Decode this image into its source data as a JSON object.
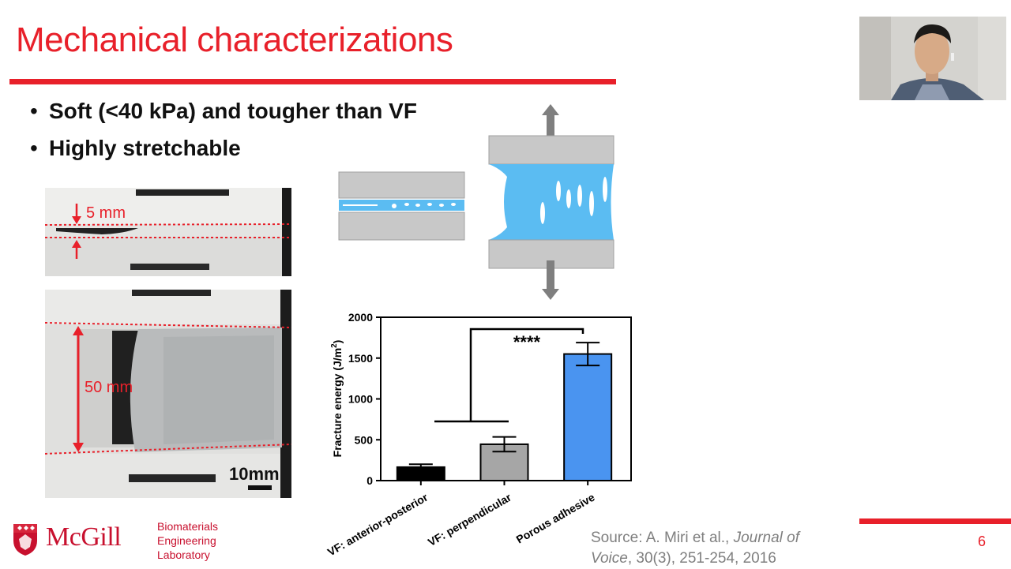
{
  "slide": {
    "title": "Mechanical characterizations",
    "bullets": [
      "Soft (<40 kPa) and tougher than VF",
      "Highly stretchable"
    ],
    "bullet_symbol": "•",
    "page_number": "6",
    "accent_color": "#e8202a"
  },
  "photos": {
    "top_label": "5 mm",
    "bottom_label": "50 mm",
    "scale_bar_label": "10mm"
  },
  "source": {
    "prefix": "Source: A. Miri et al., ",
    "journal_line1": "Journal of",
    "journal_line2": "Voice",
    "suffix": ", 30(3), 251-254, 2016"
  },
  "logo": {
    "wordmark": "McGill",
    "lab_lines": [
      "Biomaterials",
      "Engineering",
      "Laboratory"
    ]
  },
  "chart_data": {
    "type": "bar",
    "categories": [
      "VF: anterior-posterior",
      "VF: perpendicular",
      "Porous adhesive"
    ],
    "values": [
      165,
      445,
      1550
    ],
    "errors": [
      35,
      90,
      140
    ],
    "colors": [
      "#000000",
      "#a6a6a6",
      "#4a94f0"
    ],
    "ylabel": "Fracture energy (J/m",
    "ylabel_sup": "2",
    "ylabel_end": ")",
    "yticks": [
      "0",
      "500",
      "1000",
      "1500",
      "2000"
    ],
    "ylim": [
      0,
      2000
    ],
    "significance": "****"
  }
}
